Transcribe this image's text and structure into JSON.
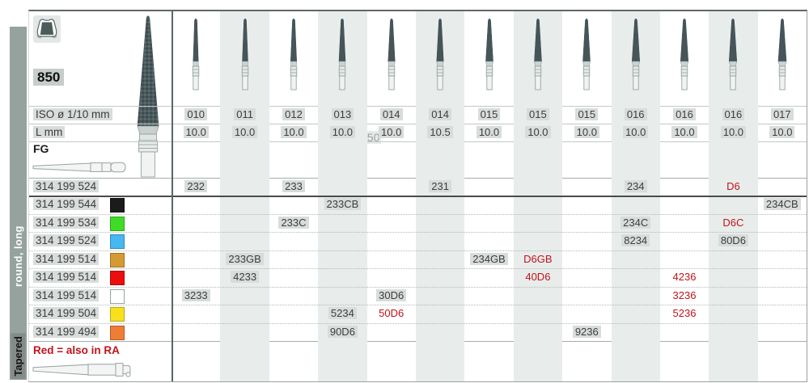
{
  "header": {
    "figure_number": "850",
    "tooth_icon": "prepared-crown-tooth",
    "shank_label": "FG",
    "watermark_text": "850"
  },
  "row_labels": {
    "iso": "ISO ø 1/10 mm",
    "length": "L mm"
  },
  "columns": [
    {
      "iso": "010",
      "l": "10.0"
    },
    {
      "iso": "011",
      "l": "10.0"
    },
    {
      "iso": "012",
      "l": "10.0"
    },
    {
      "iso": "013",
      "l": "10.0"
    },
    {
      "iso": "014",
      "l": "10.0"
    },
    {
      "iso": "014",
      "l": "10.5"
    },
    {
      "iso": "015",
      "l": "10.0"
    },
    {
      "iso": "015",
      "l": "10.0"
    },
    {
      "iso": "015",
      "l": "10.0"
    },
    {
      "iso": "016",
      "l": "10.0"
    },
    {
      "iso": "016",
      "l": "10.0"
    },
    {
      "iso": "016",
      "l": "10.0"
    },
    {
      "iso": "017",
      "l": "10.0"
    }
  ],
  "products": [
    {
      "number": "314 199 524",
      "chip": null,
      "cells": [
        {
          "col": 1,
          "value": "232"
        },
        {
          "col": 3,
          "value": "233"
        },
        {
          "col": 6,
          "value": "231"
        },
        {
          "col": 10,
          "value": "234"
        },
        {
          "col": 12,
          "value": "D6",
          "red": true
        }
      ]
    },
    {
      "number": "314 199 544",
      "chip": "#1b1b1b",
      "cells": [
        {
          "col": 4,
          "value": "233CB"
        },
        {
          "col": 13,
          "value": "234CB"
        }
      ]
    },
    {
      "number": "314 199 534",
      "chip": "#3fdc26",
      "cells": [
        {
          "col": 3,
          "value": "233C"
        },
        {
          "col": 10,
          "value": "234C"
        },
        {
          "col": 12,
          "value": "D6C",
          "red": true
        }
      ]
    },
    {
      "number": "314 199 524",
      "chip": "#46b7ef",
      "cells": [
        {
          "col": 10,
          "value": "8234"
        },
        {
          "col": 12,
          "value": "80D6"
        }
      ]
    },
    {
      "number": "314 199 514",
      "chip": "#d59b32",
      "cells": [
        {
          "col": 2,
          "value": "233GB"
        },
        {
          "col": 7,
          "value": "234GB"
        },
        {
          "col": 8,
          "value": "D6GB",
          "red": true
        }
      ]
    },
    {
      "number": "314 199 514",
      "chip": "#ec0d0d",
      "cells": [
        {
          "col": 2,
          "value": "4233"
        },
        {
          "col": 8,
          "value": "40D6",
          "red": true
        },
        {
          "col": 11,
          "value": "4236",
          "red": true
        }
      ]
    },
    {
      "number": "314 199 514",
      "chip": "#ffffff",
      "cells": [
        {
          "col": 1,
          "value": "3233"
        },
        {
          "col": 5,
          "value": "30D6"
        },
        {
          "col": 11,
          "value": "3236",
          "red": true
        }
      ]
    },
    {
      "number": "314 199 504",
      "chip": "#f8e11c",
      "cells": [
        {
          "col": 4,
          "value": "5234"
        },
        {
          "col": 5,
          "value": "50D6",
          "red": true
        },
        {
          "col": 11,
          "value": "5236",
          "red": true
        }
      ]
    },
    {
      "number": "314 199 494",
      "chip": "#ef7d35",
      "cells": [
        {
          "col": 4,
          "value": "90D6"
        },
        {
          "col": 9,
          "value": "9236"
        }
      ]
    }
  ],
  "footer": {
    "note": "Red = also in RA"
  },
  "sidebar": {
    "category": "Tapered",
    "subcategory": "round, long"
  },
  "colors": {
    "accent_red": "#c2121c",
    "column_band": "#e8edeb",
    "bur_head": "#46555a",
    "sidebar_strip": "#96a29d",
    "highlight": "#d8dddb"
  }
}
